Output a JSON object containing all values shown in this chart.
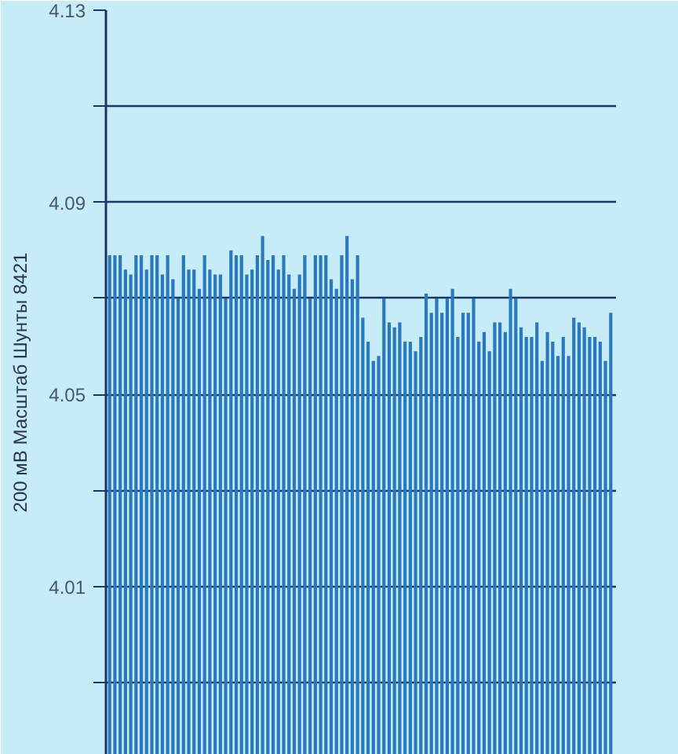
{
  "chart_data": {
    "type": "bar",
    "ylabel": "200 мВ Масштаб Шунты 8421",
    "categories": [
      null,
      null,
      null,
      null,
      null,
      null,
      null,
      null,
      null,
      null,
      null,
      null,
      null,
      null,
      null,
      null,
      null,
      null,
      null,
      null,
      null,
      null,
      null,
      null,
      null,
      null,
      null,
      null,
      null,
      null,
      null,
      null,
      null,
      null,
      null,
      null,
      null,
      null,
      null,
      null,
      null,
      null,
      null,
      null,
      null,
      null,
      null,
      null,
      null,
      null,
      null,
      null,
      null,
      null,
      null,
      null,
      null,
      null,
      null,
      null,
      null,
      null,
      null,
      null,
      null,
      null,
      null,
      null,
      null,
      null,
      null,
      null,
      null,
      null,
      null,
      null,
      null,
      null,
      null,
      null,
      null,
      null,
      null,
      null,
      null,
      null,
      null,
      null,
      null,
      null,
      null,
      null,
      null,
      null,
      null,
      null
    ],
    "values": [
      4.079,
      4.079,
      4.079,
      4.076,
      4.075,
      4.079,
      4.079,
      4.076,
      4.079,
      4.079,
      4.075,
      4.079,
      4.074,
      4.07,
      4.079,
      4.076,
      4.076,
      4.072,
      4.079,
      4.076,
      4.075,
      4.075,
      4.07,
      4.08,
      4.079,
      4.079,
      4.075,
      4.076,
      4.079,
      4.083,
      4.078,
      4.079,
      4.076,
      4.079,
      4.075,
      4.072,
      4.075,
      4.079,
      4.07,
      4.079,
      4.079,
      4.079,
      4.074,
      4.072,
      4.079,
      4.083,
      4.074,
      4.079,
      4.066,
      4.061,
      4.057,
      4.058,
      4.07,
      4.065,
      4.064,
      4.065,
      4.061,
      4.061,
      4.059,
      4.062,
      4.071,
      4.067,
      4.07,
      4.067,
      4.07,
      4.072,
      4.062,
      4.067,
      4.067,
      4.07,
      4.061,
      4.063,
      4.059,
      4.065,
      4.065,
      4.063,
      4.072,
      4.07,
      4.064,
      4.062,
      4.062,
      4.065,
      4.057,
      4.063,
      4.061,
      4.058,
      4.062,
      4.058,
      4.066,
      4.065,
      4.064,
      4.062,
      4.062,
      4.061,
      4.057,
      4.067
    ],
    "color": "#2a78be",
    "ylim": [
      3.975,
      4.13
    ],
    "yticks": [
      {
        "value": 3.99,
        "label": null
      },
      4.01,
      {
        "value": 4.03,
        "label": null
      },
      4.05,
      {
        "value": 4.07,
        "label": null
      },
      4.09,
      {
        "value": 4.11,
        "label": null
      },
      4.13
    ],
    "grid": "y",
    "tick_labels": "y"
  }
}
